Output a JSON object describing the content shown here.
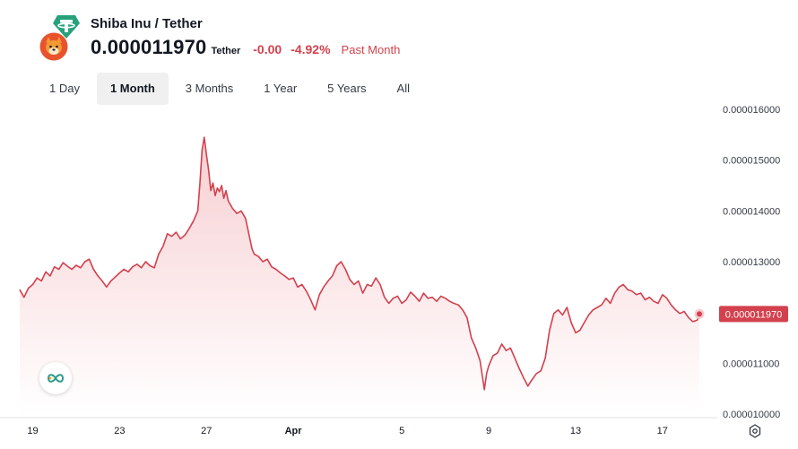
{
  "header": {
    "pair_title": "Shiba Inu / Tether",
    "price": "0.000011970",
    "unit": "Tether",
    "change_abs": "-0.00",
    "change_pct": "-4.92%",
    "change_period": "Past Month",
    "base_icon": "shiba-inu-coin-icon",
    "quote_icon": "tether-coin-icon"
  },
  "tabs": [
    {
      "label": "1 Day",
      "active": false
    },
    {
      "label": "1 Month",
      "active": true
    },
    {
      "label": "3 Months",
      "active": false
    },
    {
      "label": "1 Year",
      "active": false
    },
    {
      "label": "5 Years",
      "active": false
    },
    {
      "label": "All",
      "active": false
    }
  ],
  "colors": {
    "line": "#d2414d",
    "fill_top": "#f6c9cd",
    "fill_bottom": "#ffffff",
    "negative": "#d2414d",
    "tab_active_bg": "#f0f0f0"
  },
  "chart_data": {
    "type": "area",
    "xlabel": "",
    "ylabel": "",
    "ylim": [
      1e-05,
      1.6e-05
    ],
    "y_tick_labels": [
      "0.000016000",
      "0.000015000",
      "0.000014000",
      "0.000013000",
      "0.000011000",
      "0.000010000"
    ],
    "x_tick_labels": [
      "19",
      "23",
      "27",
      "Apr",
      "5",
      "9",
      "13",
      "17"
    ],
    "x_range": [
      18.4,
      49.7
    ],
    "x_ticks": [
      19,
      23,
      27,
      31,
      36,
      40,
      44,
      48
    ],
    "current_price_label": "0.000011970",
    "grid": false,
    "series": [
      {
        "points": [
          [
            18.4,
            1.245e-05
          ],
          [
            18.6,
            1.23e-05
          ],
          [
            18.8,
            1.248e-05
          ],
          [
            19.0,
            1.255e-05
          ],
          [
            19.2,
            1.268e-05
          ],
          [
            19.4,
            1.262e-05
          ],
          [
            19.6,
            1.28e-05
          ],
          [
            19.8,
            1.272e-05
          ],
          [
            20.0,
            1.29e-05
          ],
          [
            20.2,
            1.285e-05
          ],
          [
            20.4,
            1.298e-05
          ],
          [
            20.6,
            1.291e-05
          ],
          [
            20.8,
            1.285e-05
          ],
          [
            21.0,
            1.293e-05
          ],
          [
            21.2,
            1.288e-05
          ],
          [
            21.4,
            1.3e-05
          ],
          [
            21.6,
            1.305e-05
          ],
          [
            21.8,
            1.285e-05
          ],
          [
            22.0,
            1.272e-05
          ],
          [
            22.2,
            1.262e-05
          ],
          [
            22.4,
            1.25e-05
          ],
          [
            22.6,
            1.262e-05
          ],
          [
            22.8,
            1.27e-05
          ],
          [
            23.0,
            1.278e-05
          ],
          [
            23.2,
            1.285e-05
          ],
          [
            23.4,
            1.28e-05
          ],
          [
            23.6,
            1.29e-05
          ],
          [
            23.8,
            1.295e-05
          ],
          [
            24.0,
            1.288e-05
          ],
          [
            24.2,
            1.3e-05
          ],
          [
            24.4,
            1.292e-05
          ],
          [
            24.6,
            1.288e-05
          ],
          [
            24.8,
            1.315e-05
          ],
          [
            25.0,
            1.33e-05
          ],
          [
            25.2,
            1.355e-05
          ],
          [
            25.4,
            1.35e-05
          ],
          [
            25.6,
            1.358e-05
          ],
          [
            25.8,
            1.345e-05
          ],
          [
            26.0,
            1.352e-05
          ],
          [
            26.2,
            1.365e-05
          ],
          [
            26.4,
            1.38e-05
          ],
          [
            26.6,
            1.4e-05
          ],
          [
            26.7,
            1.455e-05
          ],
          [
            26.8,
            1.52e-05
          ],
          [
            26.9,
            1.545e-05
          ],
          [
            27.0,
            1.51e-05
          ],
          [
            27.1,
            1.48e-05
          ],
          [
            27.2,
            1.44e-05
          ],
          [
            27.3,
            1.455e-05
          ],
          [
            27.4,
            1.43e-05
          ],
          [
            27.5,
            1.445e-05
          ],
          [
            27.6,
            1.438e-05
          ],
          [
            27.7,
            1.45e-05
          ],
          [
            27.8,
            1.425e-05
          ],
          [
            27.9,
            1.44e-05
          ],
          [
            28.0,
            1.42e-05
          ],
          [
            28.2,
            1.405e-05
          ],
          [
            28.4,
            1.395e-05
          ],
          [
            28.6,
            1.4e-05
          ],
          [
            28.8,
            1.385e-05
          ],
          [
            29.0,
            1.345e-05
          ],
          [
            29.1,
            1.325e-05
          ],
          [
            29.2,
            1.315e-05
          ],
          [
            29.4,
            1.31e-05
          ],
          [
            29.6,
            1.3e-05
          ],
          [
            29.8,
            1.305e-05
          ],
          [
            30.0,
            1.29e-05
          ],
          [
            30.2,
            1.285e-05
          ],
          [
            30.4,
            1.278e-05
          ],
          [
            30.6,
            1.272e-05
          ],
          [
            30.8,
            1.265e-05
          ],
          [
            31.0,
            1.268e-05
          ],
          [
            31.2,
            1.25e-05
          ],
          [
            31.4,
            1.255e-05
          ],
          [
            31.6,
            1.242e-05
          ],
          [
            31.8,
            1.225e-05
          ],
          [
            32.0,
            1.205e-05
          ],
          [
            32.2,
            1.235e-05
          ],
          [
            32.4,
            1.25e-05
          ],
          [
            32.6,
            1.262e-05
          ],
          [
            32.8,
            1.272e-05
          ],
          [
            33.0,
            1.292e-05
          ],
          [
            33.2,
            1.3e-05
          ],
          [
            33.4,
            1.285e-05
          ],
          [
            33.6,
            1.265e-05
          ],
          [
            33.8,
            1.255e-05
          ],
          [
            34.0,
            1.262e-05
          ],
          [
            34.2,
            1.238e-05
          ],
          [
            34.4,
            1.255e-05
          ],
          [
            34.6,
            1.252e-05
          ],
          [
            34.8,
            1.268e-05
          ],
          [
            35.0,
            1.255e-05
          ],
          [
            35.2,
            1.23e-05
          ],
          [
            35.4,
            1.218e-05
          ],
          [
            35.6,
            1.228e-05
          ],
          [
            35.8,
            1.232e-05
          ],
          [
            36.0,
            1.218e-05
          ],
          [
            36.2,
            1.225e-05
          ],
          [
            36.4,
            1.24e-05
          ],
          [
            36.6,
            1.232e-05
          ],
          [
            36.8,
            1.222e-05
          ],
          [
            37.0,
            1.238e-05
          ],
          [
            37.2,
            1.228e-05
          ],
          [
            37.4,
            1.23e-05
          ],
          [
            37.6,
            1.222e-05
          ],
          [
            37.8,
            1.232e-05
          ],
          [
            38.0,
            1.228e-05
          ],
          [
            38.2,
            1.222e-05
          ],
          [
            38.4,
            1.218e-05
          ],
          [
            38.6,
            1.215e-05
          ],
          [
            38.8,
            1.205e-05
          ],
          [
            39.0,
            1.19e-05
          ],
          [
            39.2,
            1.15e-05
          ],
          [
            39.4,
            1.13e-05
          ],
          [
            39.6,
            1.105e-05
          ],
          [
            39.8,
            1.048e-05
          ],
          [
            39.9,
            1.08e-05
          ],
          [
            40.0,
            1.095e-05
          ],
          [
            40.2,
            1.115e-05
          ],
          [
            40.4,
            1.12e-05
          ],
          [
            40.6,
            1.138e-05
          ],
          [
            40.8,
            1.125e-05
          ],
          [
            41.0,
            1.13e-05
          ],
          [
            41.2,
            1.11e-05
          ],
          [
            41.4,
            1.09e-05
          ],
          [
            41.6,
            1.072e-05
          ],
          [
            41.8,
            1.055e-05
          ],
          [
            42.0,
            1.068e-05
          ],
          [
            42.2,
            1.08e-05
          ],
          [
            42.4,
            1.085e-05
          ],
          [
            42.6,
            1.11e-05
          ],
          [
            42.8,
            1.165e-05
          ],
          [
            43.0,
            1.198e-05
          ],
          [
            43.2,
            1.205e-05
          ],
          [
            43.4,
            1.195e-05
          ],
          [
            43.6,
            1.21e-05
          ],
          [
            43.8,
            1.18e-05
          ],
          [
            44.0,
            1.16e-05
          ],
          [
            44.2,
            1.165e-05
          ],
          [
            44.4,
            1.18e-05
          ],
          [
            44.6,
            1.195e-05
          ],
          [
            44.8,
            1.205e-05
          ],
          [
            45.0,
            1.21e-05
          ],
          [
            45.2,
            1.215e-05
          ],
          [
            45.4,
            1.228e-05
          ],
          [
            45.6,
            1.218e-05
          ],
          [
            45.8,
            1.238e-05
          ],
          [
            46.0,
            1.25e-05
          ],
          [
            46.2,
            1.255e-05
          ],
          [
            46.4,
            1.245e-05
          ],
          [
            46.6,
            1.242e-05
          ],
          [
            46.8,
            1.235e-05
          ],
          [
            47.0,
            1.238e-05
          ],
          [
            47.2,
            1.225e-05
          ],
          [
            47.4,
            1.23e-05
          ],
          [
            47.6,
            1.222e-05
          ],
          [
            47.8,
            1.218e-05
          ],
          [
            48.0,
            1.235e-05
          ],
          [
            48.2,
            1.228e-05
          ],
          [
            48.4,
            1.215e-05
          ],
          [
            48.6,
            1.205e-05
          ],
          [
            48.8,
            1.198e-05
          ],
          [
            49.0,
            1.202e-05
          ],
          [
            49.2,
            1.19e-05
          ],
          [
            49.4,
            1.182e-05
          ],
          [
            49.6,
            1.185e-05
          ],
          [
            49.7,
            1.197e-05
          ]
        ]
      }
    ]
  }
}
